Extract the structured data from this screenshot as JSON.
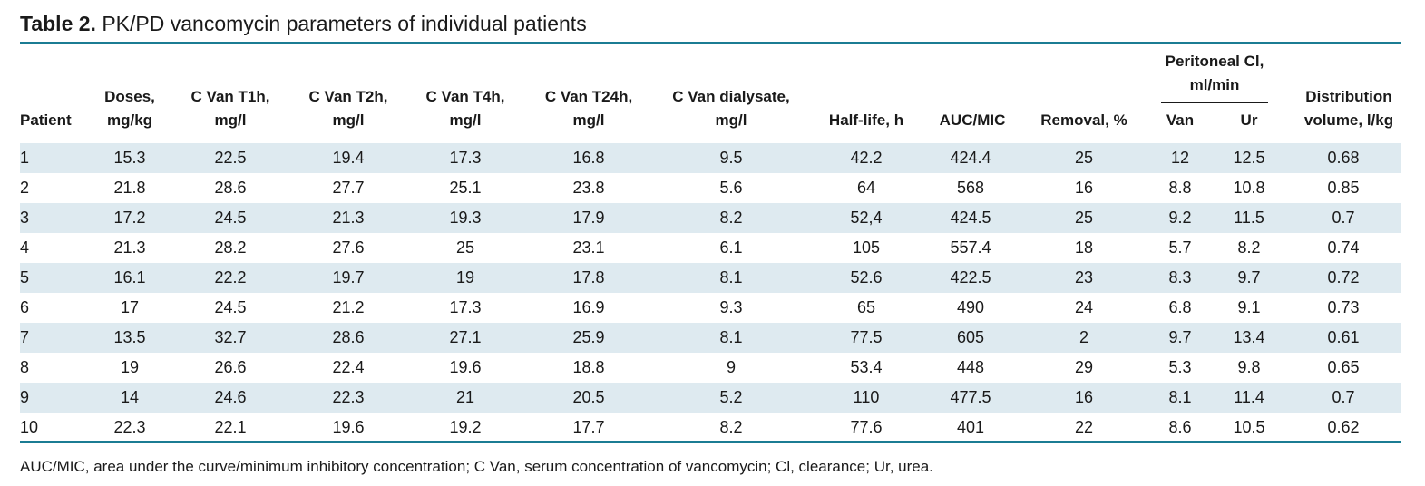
{
  "title": {
    "label": "Table 2.",
    "text": "PK/PD vancomycin parameters of individual patients"
  },
  "table": {
    "columns": {
      "patient": [
        "Patient"
      ],
      "doses": [
        "Doses,",
        "mg/kg"
      ],
      "t1h": [
        "C Van T1h,",
        "mg/l"
      ],
      "t2h": [
        "C Van T2h,",
        "mg/l"
      ],
      "t4h": [
        "C Van T4h,",
        "mg/l"
      ],
      "t24h": [
        "C Van T24h,",
        "mg/l"
      ],
      "dialysate": [
        "C Van dialysate,",
        "mg/l"
      ],
      "halflife": [
        "Half-life, h"
      ],
      "aucmic": [
        "AUC/MIC"
      ],
      "removal": [
        "Removal, %"
      ],
      "peritoneal": [
        "Peritoneal Cl,",
        "ml/min"
      ],
      "van": [
        "Van"
      ],
      "ur": [
        "Ur"
      ],
      "distribution": [
        "Distribution",
        "volume, l/kg"
      ]
    },
    "rows": [
      [
        "1",
        "15.3",
        "22.5",
        "19.4",
        "17.3",
        "16.8",
        "9.5",
        "42.2",
        "424.4",
        "25",
        "12",
        "12.5",
        "0.68"
      ],
      [
        "2",
        "21.8",
        "28.6",
        "27.7",
        "25.1",
        "23.8",
        "5.6",
        "64",
        "568",
        "16",
        "8.8",
        "10.8",
        "0.85"
      ],
      [
        "3",
        "17.2",
        "24.5",
        "21.3",
        "19.3",
        "17.9",
        "8.2",
        "52,4",
        "424.5",
        "25",
        "9.2",
        "11.5",
        "0.7"
      ],
      [
        "4",
        "21.3",
        "28.2",
        "27.6",
        "25",
        "23.1",
        "6.1",
        "105",
        "557.4",
        "18",
        "5.7",
        "8.2",
        "0.74"
      ],
      [
        "5",
        "16.1",
        "22.2",
        "19.7",
        "19",
        "17.8",
        "8.1",
        "52.6",
        "422.5",
        "23",
        "8.3",
        "9.7",
        "0.72"
      ],
      [
        "6",
        "17",
        "24.5",
        "21.2",
        "17.3",
        "16.9",
        "9.3",
        "65",
        "490",
        "24",
        "6.8",
        "9.1",
        "0.73"
      ],
      [
        "7",
        "13.5",
        "32.7",
        "28.6",
        "27.1",
        "25.9",
        "8.1",
        "77.5",
        "605",
        "2",
        "9.7",
        "13.4",
        "0.61"
      ],
      [
        "8",
        "19",
        "26.6",
        "22.4",
        "19.6",
        "18.8",
        "9",
        "53.4",
        "448",
        "29",
        "5.3",
        "9.8",
        "0.65"
      ],
      [
        "9",
        "14",
        "24.6",
        "22.3",
        "21",
        "20.5",
        "5.2",
        "110",
        "477.5",
        "16",
        "8.1",
        "11.4",
        "0.7"
      ],
      [
        "10",
        "22.3",
        "22.1",
        "19.6",
        "19.2",
        "17.7",
        "8.2",
        "77.6",
        "401",
        "22",
        "8.6",
        "10.5",
        "0.62"
      ]
    ]
  },
  "footnote": "AUC/MIC, area under the curve/minimum inhibitory concentration; C Van, serum concentration of vancomycin; Cl, clearance; Ur, urea.",
  "colors": {
    "rule": "#1b7c93",
    "band": "#deeaf0"
  }
}
